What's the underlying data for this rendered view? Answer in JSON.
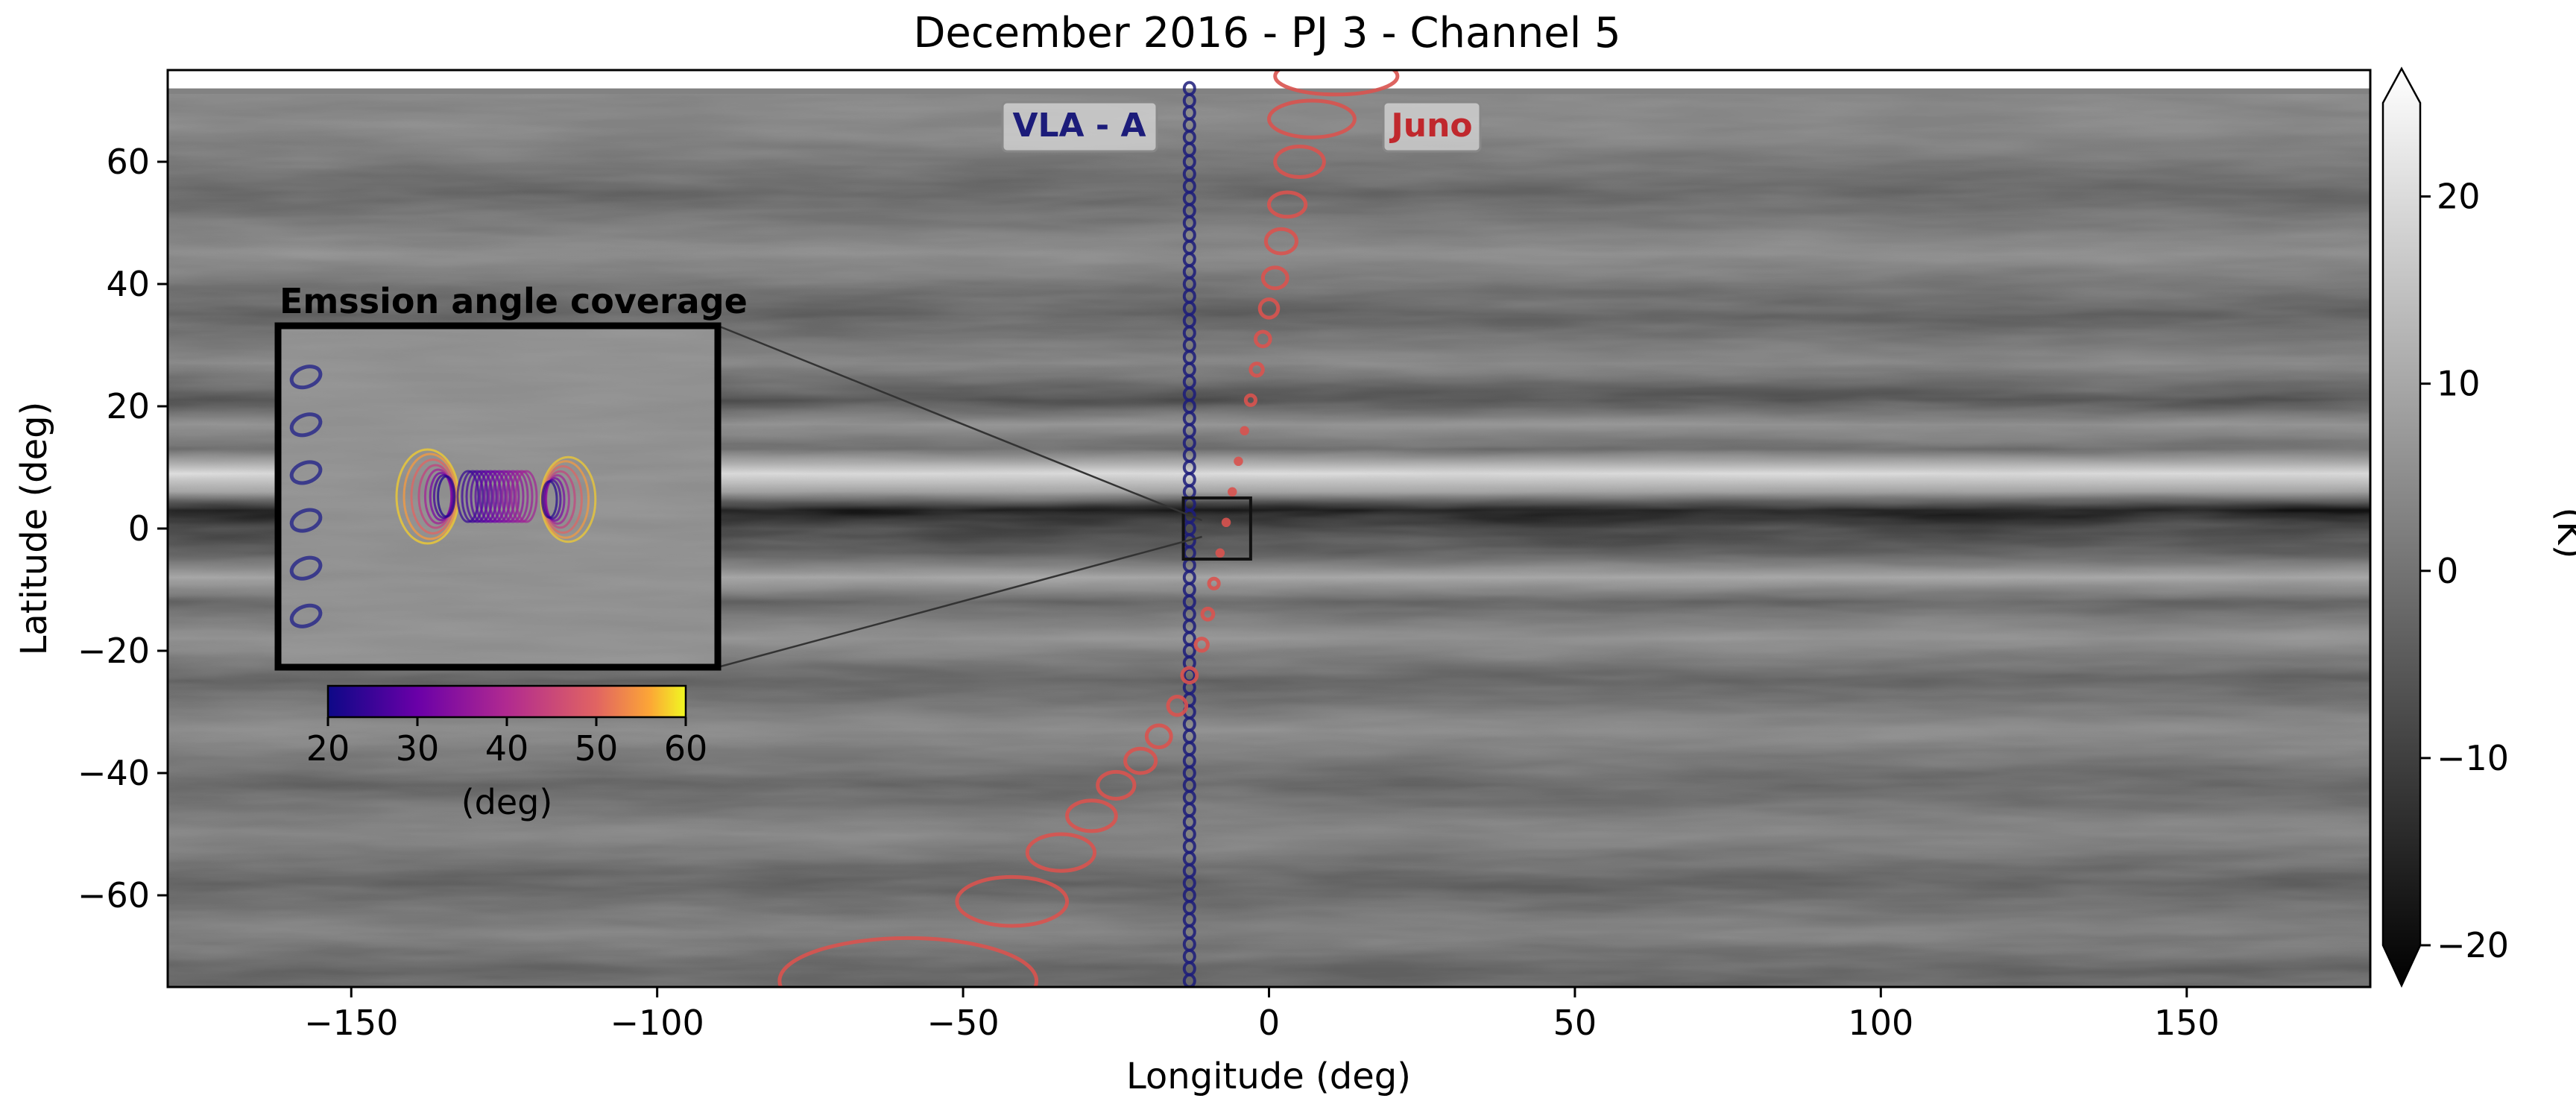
{
  "chart_data": {
    "type": "heatmap",
    "title": "December 2016 - PJ 3 - Channel 5",
    "xlabel": "Longitude (deg)",
    "ylabel": "Latitude (deg)",
    "xlim": [
      -180,
      180
    ],
    "ylim": [
      -75,
      75
    ],
    "x_ticks": [
      -150,
      -100,
      -50,
      0,
      50,
      100,
      150
    ],
    "x_tick_labels": [
      "−150",
      "−100",
      "−50",
      "0",
      "50",
      "100",
      "150"
    ],
    "y_ticks": [
      60,
      40,
      20,
      0,
      -20,
      -40,
      -60
    ],
    "y_tick_labels": [
      "60",
      "40",
      "20",
      "0",
      "−20",
      "−40",
      "−60"
    ],
    "colorbar": {
      "label": "(K)",
      "range": [
        -20,
        25
      ],
      "extend": "both",
      "ticks": [
        20,
        10,
        0,
        -10,
        -20
      ],
      "tick_labels": [
        "20",
        "10",
        "0",
        "−10",
        "−20"
      ],
      "colormap": "gray"
    },
    "zonal_bands": [
      {
        "lat": 65,
        "value": 3
      },
      {
        "lat": 55,
        "value": -3
      },
      {
        "lat": 45,
        "value": 4
      },
      {
        "lat": 35,
        "value": -4
      },
      {
        "lat": 27,
        "value": 3
      },
      {
        "lat": 21,
        "value": -7
      },
      {
        "lat": 17,
        "value": 5
      },
      {
        "lat": 13,
        "value": -2
      },
      {
        "lat": 9,
        "value": 19
      },
      {
        "lat": 6,
        "value": 8
      },
      {
        "lat": 3,
        "value": -17
      },
      {
        "lat": 0,
        "value": -9
      },
      {
        "lat": -4,
        "value": -5
      },
      {
        "lat": -8,
        "value": 9
      },
      {
        "lat": -12,
        "value": -3
      },
      {
        "lat": -18,
        "value": 5
      },
      {
        "lat": -25,
        "value": -4
      },
      {
        "lat": -33,
        "value": 4
      },
      {
        "lat": -42,
        "value": -3
      },
      {
        "lat": -50,
        "value": 3
      },
      {
        "lat": -58,
        "value": -4
      },
      {
        "lat": -66,
        "value": 2
      },
      {
        "lat": -72,
        "value": -3
      }
    ],
    "series": [
      {
        "name": "VLA - A",
        "color": "#1c1c7a",
        "track": {
          "lon": -13,
          "lat_start": 72,
          "lat_end": -75,
          "lat_step": 2
        }
      },
      {
        "name": "Juno",
        "color": "#d9534f",
        "footprints": [
          {
            "lon": 11,
            "lat": 74,
            "rx": 10,
            "ry": 3
          },
          {
            "lon": 7,
            "lat": 67,
            "rx": 7,
            "ry": 3
          },
          {
            "lon": 5,
            "lat": 60,
            "rx": 4,
            "ry": 2.5
          },
          {
            "lon": 3,
            "lat": 53,
            "rx": 3,
            "ry": 2
          },
          {
            "lon": 2,
            "lat": 47,
            "rx": 2.5,
            "ry": 2
          },
          {
            "lon": 1,
            "lat": 41,
            "rx": 2,
            "ry": 1.7
          },
          {
            "lon": 0,
            "lat": 36,
            "rx": 1.5,
            "ry": 1.5
          },
          {
            "lon": -1,
            "lat": 31,
            "rx": 1.2,
            "ry": 1.2
          },
          {
            "lon": -2,
            "lat": 26,
            "rx": 1,
            "ry": 1
          },
          {
            "lon": -3,
            "lat": 21,
            "rx": 0.8,
            "ry": 0.8
          },
          {
            "lon": -4,
            "lat": 16,
            "rx": 0.7,
            "ry": 0.7
          },
          {
            "lon": -5,
            "lat": 11,
            "rx": 0.7,
            "ry": 0.7
          },
          {
            "lon": -6,
            "lat": 6,
            "rx": 0.7,
            "ry": 0.7
          },
          {
            "lon": -7,
            "lat": 1,
            "rx": 0.7,
            "ry": 0.7
          },
          {
            "lon": -8,
            "lat": -4,
            "rx": 0.7,
            "ry": 0.7
          },
          {
            "lon": -9,
            "lat": -9,
            "rx": 0.8,
            "ry": 0.8
          },
          {
            "lon": -10,
            "lat": -14,
            "rx": 0.9,
            "ry": 0.9
          },
          {
            "lon": -11,
            "lat": -19,
            "rx": 1,
            "ry": 1
          },
          {
            "lon": -13,
            "lat": -24,
            "rx": 1.2,
            "ry": 1.2
          },
          {
            "lon": -15,
            "lat": -29,
            "rx": 1.5,
            "ry": 1.5
          },
          {
            "lon": -18,
            "lat": -34,
            "rx": 2,
            "ry": 1.8
          },
          {
            "lon": -21,
            "lat": -38,
            "rx": 2.5,
            "ry": 2
          },
          {
            "lon": -25,
            "lat": -42,
            "rx": 3,
            "ry": 2.2
          },
          {
            "lon": -29,
            "lat": -47,
            "rx": 4,
            "ry": 2.5
          },
          {
            "lon": -34,
            "lat": -53,
            "rx": 5.5,
            "ry": 3
          },
          {
            "lon": -42,
            "lat": -61,
            "rx": 9,
            "ry": 4
          },
          {
            "lon": -59,
            "lat": -74,
            "rx": 21,
            "ry": 7
          }
        ]
      }
    ],
    "annotations": [
      {
        "text": "VLA - A",
        "lon": -31,
        "lat": 65
      },
      {
        "text": "Juno",
        "lon": 27,
        "lat": 65
      }
    ],
    "zoom_box": {
      "lon": [
        -14,
        -3
      ],
      "lat": [
        -5,
        5
      ]
    },
    "inset": {
      "title": "Emssion angle coverage",
      "colorbar_label": "(deg)",
      "colorbar_range": [
        20,
        60
      ],
      "colorbar_ticks": [
        20,
        30,
        40,
        50,
        60
      ],
      "colorbar_tick_labels": [
        "20",
        "30",
        "40",
        "50",
        "60"
      ],
      "colormap": "plasma",
      "vla_angles_lat": [
        3.5,
        2.1,
        0.7,
        -0.7,
        -2.1,
        -3.5
      ],
      "vla_inset_lon": -13.3,
      "juno_loops": [
        {
          "emission_angle": 58,
          "rx": 26,
          "ry": 42
        },
        {
          "emission_angle": 55,
          "rx": 22,
          "ry": 38
        },
        {
          "emission_angle": 50,
          "rx": 18,
          "ry": 33
        },
        {
          "emission_angle": 44,
          "rx": 14,
          "ry": 28
        },
        {
          "emission_angle": 38,
          "rx": 11,
          "ry": 24
        },
        {
          "emission_angle": 32,
          "rx": 9,
          "ry": 21
        },
        {
          "emission_angle": 26,
          "rx": 8,
          "ry": 19
        },
        {
          "emission_angle": 22,
          "rx": 7,
          "ry": 18
        }
      ]
    }
  }
}
